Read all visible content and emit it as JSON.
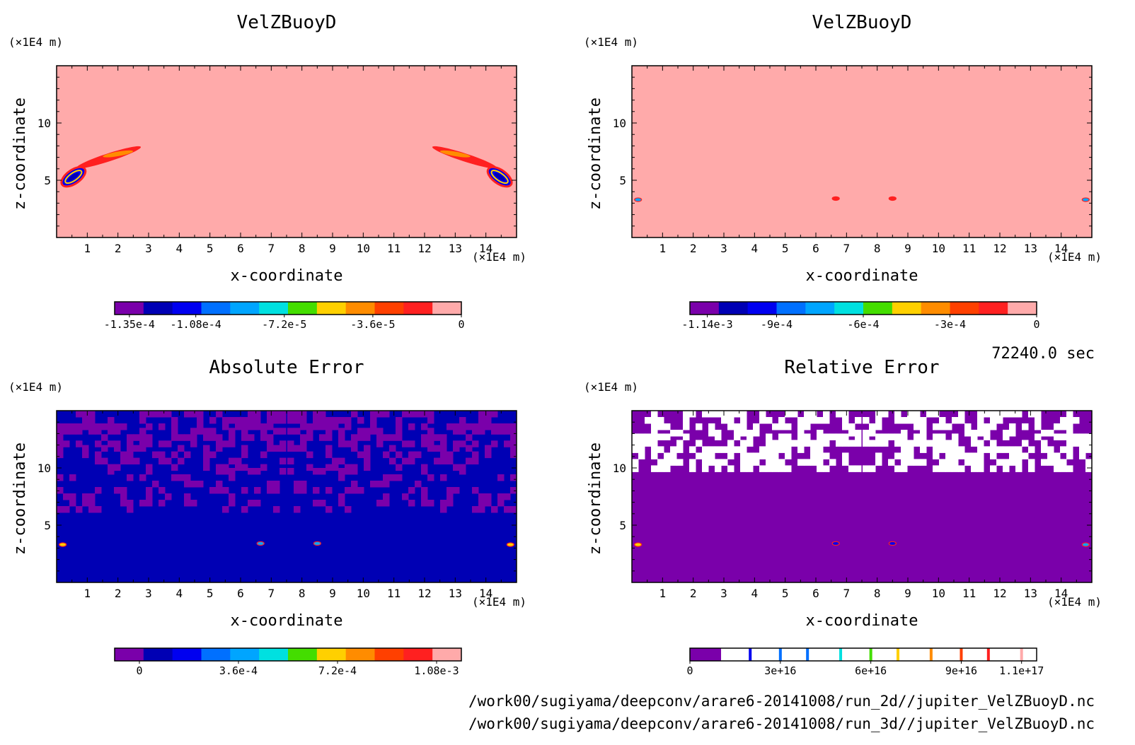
{
  "colors": {
    "purple": "#7a00aa",
    "navy": "#0000b4",
    "blue": "#0000f0",
    "azure": "#0070ff",
    "sky": "#00a5ff",
    "cyan": "#00e0e0",
    "green": "#44dd00",
    "yellow": "#ffd000",
    "orange": "#ff8c00",
    "red_orange": "#ff4000",
    "red": "#ff2020",
    "pink": "#ffaaaa",
    "white": "#ffffff"
  },
  "time_label": "72240.0 sec",
  "file_paths": [
    "/work00/sugiyama/deepconv/arare6-20141008/run_2d//jupiter_VelZBuoyD.nc",
    "/work00/sugiyama/deepconv/arare6-20141008/run_3d//jupiter_VelZBuoyD.nc"
  ],
  "chart_data": [
    {
      "type": "heatmap",
      "title": "VelZBuoyD",
      "xlabel": "x-coordinate",
      "ylabel": "z-coordinate",
      "x_unit": "(×1E4 m)",
      "y_unit": "(×1E4 m)",
      "xlim": [
        0,
        15
      ],
      "ylim": [
        0,
        15
      ],
      "x_ticks": [
        1,
        2,
        3,
        4,
        5,
        6,
        7,
        8,
        9,
        10,
        11,
        12,
        13,
        14
      ],
      "y_ticks": [
        5,
        10
      ],
      "background_color": "pink",
      "features": [
        {
          "kind": "streak",
          "x": 1.7,
          "z": 7.0,
          "dx": 1.1,
          "dz": 0.35,
          "rot": -18,
          "color": "red"
        },
        {
          "kind": "streak",
          "x": 2.0,
          "z": 7.3,
          "dx": 0.5,
          "dz": 0.2,
          "rot": -10,
          "color": "orange"
        },
        {
          "kind": "blob",
          "x": 0.55,
          "z": 5.3,
          "dx": 0.45,
          "dz": 0.6,
          "rot": -35,
          "color": "blue"
        },
        {
          "kind": "streak",
          "x": 13.3,
          "z": 7.0,
          "dx": 1.1,
          "dz": 0.35,
          "rot": 18,
          "color": "red"
        },
        {
          "kind": "streak",
          "x": 13.0,
          "z": 7.3,
          "dx": 0.5,
          "dz": 0.2,
          "rot": 10,
          "color": "orange"
        },
        {
          "kind": "blob",
          "x": 14.45,
          "z": 5.3,
          "dx": 0.45,
          "dz": 0.6,
          "rot": 35,
          "color": "blue"
        }
      ],
      "colorbar": {
        "colors": [
          "purple",
          "navy",
          "blue",
          "azure",
          "sky",
          "cyan",
          "green",
          "yellow",
          "orange",
          "red_orange",
          "red",
          "pink"
        ],
        "tick_labels": [
          "-1.35e-4",
          "-1.08e-4",
          "-7.2e-5",
          "-3.6e-5",
          "0"
        ],
        "tick_values": [
          -0.000135,
          -0.000108,
          -7.2e-05,
          -3.6e-05,
          0
        ],
        "range": [
          -0.000141,
          0
        ]
      }
    },
    {
      "type": "heatmap",
      "title": "VelZBuoyD",
      "xlabel": "x-coordinate",
      "ylabel": "z-coordinate",
      "x_unit": "(×1E4 m)",
      "y_unit": "(×1E4 m)",
      "xlim": [
        0,
        15
      ],
      "ylim": [
        0,
        15
      ],
      "x_ticks": [
        1,
        2,
        3,
        4,
        5,
        6,
        7,
        8,
        9,
        10,
        11,
        12,
        13,
        14
      ],
      "y_ticks": [
        5,
        10
      ],
      "background_color": "pink",
      "features": [
        {
          "kind": "dot",
          "x": 0.2,
          "z": 3.3,
          "color": "sky"
        },
        {
          "kind": "dot",
          "x": 6.65,
          "z": 3.4,
          "color": "red"
        },
        {
          "kind": "dot",
          "x": 8.5,
          "z": 3.4,
          "color": "red"
        },
        {
          "kind": "dot",
          "x": 14.8,
          "z": 3.3,
          "color": "sky"
        }
      ],
      "colorbar": {
        "colors": [
          "purple",
          "navy",
          "blue",
          "azure",
          "sky",
          "cyan",
          "green",
          "yellow",
          "orange",
          "red_orange",
          "red",
          "pink"
        ],
        "tick_labels": [
          "-1.14e-3",
          "-9e-4",
          "-6e-4",
          "-3e-4",
          "0"
        ],
        "tick_values": [
          -0.00114,
          -0.0009,
          -0.0006,
          -0.0003,
          0
        ],
        "range": [
          -0.0012,
          0
        ]
      }
    },
    {
      "type": "heatmap",
      "title": "Absolute Error",
      "xlabel": "x-coordinate",
      "ylabel": "z-coordinate",
      "x_unit": "(×1E4 m)",
      "y_unit": "(×1E4 m)",
      "xlim": [
        0,
        15
      ],
      "ylim": [
        0,
        15
      ],
      "x_ticks": [
        1,
        2,
        3,
        4,
        5,
        6,
        7,
        8,
        9,
        10,
        11,
        12,
        13,
        14
      ],
      "y_ticks": [
        5,
        10
      ],
      "background_color": "navy",
      "features": [
        {
          "kind": "band",
          "z0": 13.5,
          "z1": 15.0,
          "cover": 0.55,
          "color": "purple"
        },
        {
          "kind": "band",
          "z0": 12.0,
          "z1": 13.5,
          "cover": 0.45,
          "color": "purple"
        },
        {
          "kind": "band",
          "z0": 10.0,
          "z1": 12.0,
          "cover": 0.35,
          "color": "purple"
        },
        {
          "kind": "band",
          "z0": 6.5,
          "z1": 10.0,
          "cover": 0.25,
          "color": "purple"
        },
        {
          "kind": "dot",
          "x": 0.2,
          "z": 3.3,
          "color": "yellow"
        },
        {
          "kind": "dot",
          "x": 6.65,
          "z": 3.4,
          "color": "sky"
        },
        {
          "kind": "dot",
          "x": 8.5,
          "z": 3.4,
          "color": "sky"
        },
        {
          "kind": "dot",
          "x": 14.8,
          "z": 3.3,
          "color": "yellow"
        }
      ],
      "colorbar": {
        "colors": [
          "purple",
          "navy",
          "blue",
          "azure",
          "sky",
          "cyan",
          "green",
          "yellow",
          "orange",
          "red_orange",
          "red",
          "pink"
        ],
        "tick_labels": [
          "0",
          "3.6e-4",
          "7.2e-4",
          "1.08e-3"
        ],
        "tick_values": [
          0,
          0.00036,
          0.00072,
          0.00108
        ],
        "range": [
          -9e-05,
          0.00117
        ]
      }
    },
    {
      "type": "heatmap",
      "title": "Relative Error",
      "xlabel": "x-coordinate",
      "ylabel": "z-coordinate",
      "x_unit": "(×1E4 m)",
      "y_unit": "(×1E4 m)",
      "xlim": [
        0,
        15
      ],
      "ylim": [
        0,
        15
      ],
      "x_ticks": [
        1,
        2,
        3,
        4,
        5,
        6,
        7,
        8,
        9,
        10,
        11,
        12,
        13,
        14
      ],
      "y_ticks": [
        5,
        10
      ],
      "background_color": "purple",
      "features": [
        {
          "kind": "band",
          "z0": 13.0,
          "z1": 15.0,
          "cover": 0.5,
          "color": "white"
        },
        {
          "kind": "band",
          "z0": 10.0,
          "z1": 13.0,
          "cover": 0.55,
          "color": "white"
        },
        {
          "kind": "dome",
          "z_edge": 4.2,
          "z_top": 7.5,
          "color": "purple"
        },
        {
          "kind": "dot",
          "x": 0.2,
          "z": 3.3,
          "color": "yellow"
        },
        {
          "kind": "dot",
          "x": 6.65,
          "z": 3.4,
          "color": "blue"
        },
        {
          "kind": "dot",
          "x": 8.5,
          "z": 3.4,
          "color": "blue"
        },
        {
          "kind": "dot",
          "x": 14.8,
          "z": 3.3,
          "color": "sky"
        }
      ],
      "colorbar": {
        "colors": [
          "purple",
          "white"
        ],
        "tick_labels": [
          "0",
          "3e+16",
          "6e+16",
          "9e+16",
          "1.1e+17"
        ],
        "tick_values": [
          0,
          3e+16,
          6e+16,
          9e+16,
          1.1e+17
        ],
        "range": [
          0,
          1.15e+17
        ],
        "markers": [
          {
            "value": 2e+16,
            "color": "blue"
          },
          {
            "value": 3e+16,
            "color": "azure"
          },
          {
            "value": 3.9e+16,
            "color": "azure"
          },
          {
            "value": 5e+16,
            "color": "cyan"
          },
          {
            "value": 6e+16,
            "color": "green"
          },
          {
            "value": 6.9e+16,
            "color": "yellow"
          },
          {
            "value": 8e+16,
            "color": "orange"
          },
          {
            "value": 9e+16,
            "color": "red_orange"
          },
          {
            "value": 9.9e+16,
            "color": "red"
          },
          {
            "value": 1.1e+17,
            "color": "pink"
          }
        ]
      }
    }
  ]
}
